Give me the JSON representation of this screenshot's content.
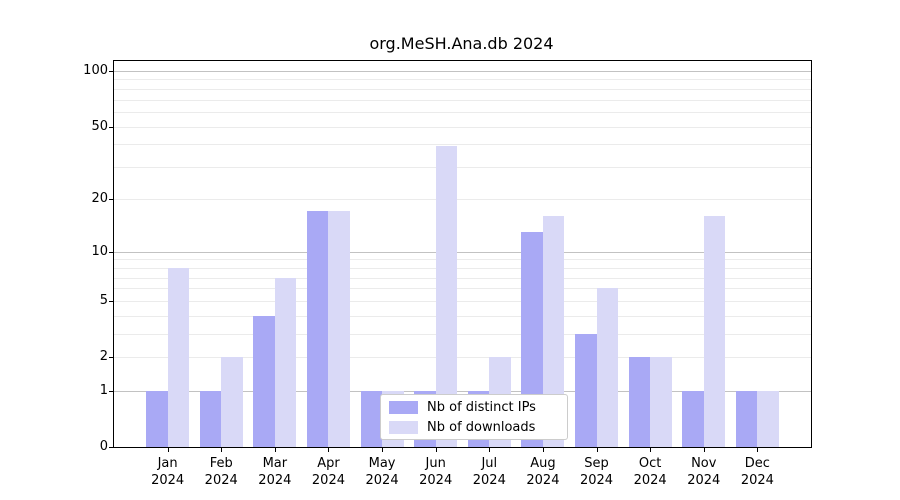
{
  "title": "org.MeSH.Ana.db 2024",
  "legend": {
    "items": [
      {
        "label": "Nb of distinct IPs",
        "color": "#a9a9f5"
      },
      {
        "label": "Nb of downloads",
        "color": "#d9d9f7"
      }
    ]
  },
  "colors": {
    "bar_distinct_ips": "#a9a9f5",
    "bar_downloads": "#d9d9f7",
    "grid_major": "#c2c2c2",
    "grid_minor": "#ebebeb",
    "axis": "#000000",
    "background": "#ffffff"
  },
  "chart_data": {
    "type": "bar",
    "title": "org.MeSH.Ana.db 2024",
    "categories": [
      "Jan",
      "Feb",
      "Mar",
      "Apr",
      "May",
      "Jun",
      "Jul",
      "Aug",
      "Sep",
      "Oct",
      "Nov",
      "Dec"
    ],
    "year": "2024",
    "series": [
      {
        "name": "Nb of distinct IPs",
        "color": "#a9a9f5",
        "values": [
          1,
          1,
          4,
          17,
          1,
          1,
          1,
          13,
          3,
          2,
          1,
          1
        ]
      },
      {
        "name": "Nb of downloads",
        "color": "#d9d9f7",
        "values": [
          8,
          2,
          7,
          17,
          1,
          39,
          2,
          16,
          6,
          2,
          16,
          1
        ]
      }
    ],
    "xlabel": "",
    "ylabel": "",
    "yscale": "log1p",
    "ylim": [
      0,
      100
    ],
    "yticks": [
      0,
      1,
      2,
      5,
      10,
      20,
      50,
      100
    ],
    "grid_major": [
      1,
      10,
      100
    ],
    "grid_minor": [
      2,
      3,
      4,
      5,
      6,
      7,
      8,
      9,
      20,
      30,
      40,
      50,
      60,
      70,
      80,
      90
    ],
    "grid": "on",
    "legend_position": "inside lower-center-left"
  }
}
